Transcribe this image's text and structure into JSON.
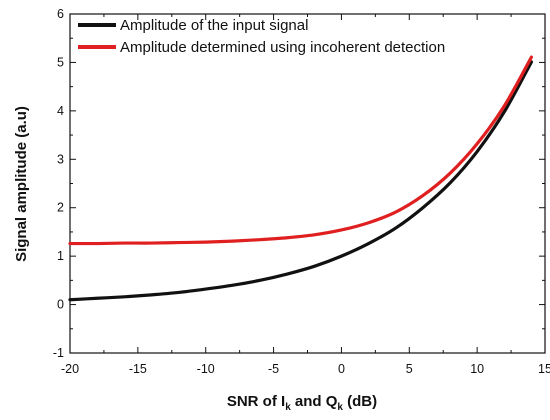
{
  "chart_data": {
    "type": "line",
    "xlabel": "SNR of I_k and Q_k (dB)",
    "xlabel_parts": {
      "a": "SNR of I",
      "sub1": "k",
      "b": " and Q",
      "sub2": "k",
      "c": " (dB)"
    },
    "ylabel": "Signal amplitude (a.u)",
    "xlim": [
      -20,
      15
    ],
    "ylim": [
      -1,
      6
    ],
    "xticks": [
      -20,
      -15,
      -10,
      -5,
      0,
      5,
      10,
      15
    ],
    "yticks": [
      -1,
      0,
      1,
      2,
      3,
      4,
      5,
      6
    ],
    "legend_position": "top-left",
    "grid": false,
    "series": [
      {
        "name": "Amplitude of the input signal",
        "color": "#111111",
        "x": [
          -20,
          -18,
          -16,
          -14,
          -12,
          -10,
          -8,
          -6,
          -4,
          -2,
          0,
          2,
          4,
          6,
          8,
          10,
          12,
          14
        ],
        "y": [
          0.1,
          0.13,
          0.16,
          0.2,
          0.25,
          0.32,
          0.4,
          0.5,
          0.63,
          0.79,
          1.0,
          1.26,
          1.58,
          2.0,
          2.51,
          3.16,
          3.98,
          5.01
        ]
      },
      {
        "name": "Amplitude determined using incoherent detection",
        "color": "#e02020",
        "x": [
          -20,
          -18,
          -16,
          -14,
          -12,
          -10,
          -8,
          -6,
          -4,
          -2,
          0,
          2,
          4,
          6,
          8,
          10,
          12,
          14
        ],
        "y": [
          1.26,
          1.26,
          1.27,
          1.27,
          1.28,
          1.29,
          1.31,
          1.34,
          1.38,
          1.44,
          1.54,
          1.69,
          1.91,
          2.25,
          2.71,
          3.32,
          4.1,
          5.11
        ]
      }
    ]
  }
}
